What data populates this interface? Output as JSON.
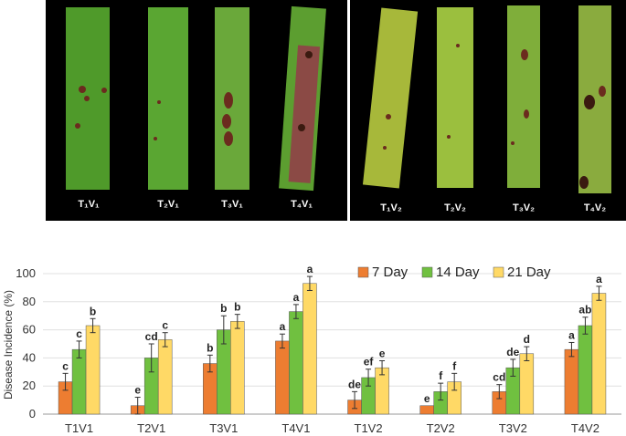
{
  "photo_panels": [
    {
      "labels": [
        "T₁V₁",
        "T₂V₁",
        "T₃V₁",
        "T₄V₁"
      ]
    },
    {
      "labels": [
        "T₁V₂",
        "T₂V₂",
        "T₃V₂",
        "T₄V₂"
      ]
    }
  ],
  "colors": {
    "day7": "#ED7D31",
    "day14": "#70C040",
    "day21": "#FFD966",
    "leaf_green": "#5a9e2e",
    "lesion": "#6b2b1e"
  },
  "chart_data": {
    "type": "bar",
    "ylabel": "Disease Incidence (%)",
    "ylim": [
      0,
      100
    ],
    "yticks": [
      0,
      20,
      40,
      60,
      80,
      100
    ],
    "categories": [
      "T1V1",
      "T2V1",
      "T3V1",
      "T4V1",
      "T1V2",
      "T2V2",
      "T3V2",
      "T4V2"
    ],
    "series": [
      {
        "name": "7 Day",
        "values": [
          23,
          6,
          36,
          52,
          10,
          6,
          16,
          46
        ],
        "errors": [
          6,
          6,
          6,
          5,
          6,
          0,
          5,
          5
        ],
        "letters": [
          "c",
          "e",
          "b",
          "a",
          "de",
          "e",
          "cd",
          "a"
        ]
      },
      {
        "name": "14 Day",
        "values": [
          46,
          40,
          60,
          73,
          26,
          16,
          33,
          63
        ],
        "errors": [
          6,
          10,
          10,
          5,
          6,
          6,
          6,
          6
        ],
        "letters": [
          "c",
          "cd",
          "b",
          "a",
          "ef",
          "f",
          "de",
          "ab"
        ]
      },
      {
        "name": "21 Day",
        "values": [
          63,
          53,
          66,
          93,
          33,
          23,
          43,
          86
        ],
        "errors": [
          5,
          5,
          5,
          5,
          5,
          6,
          5,
          5
        ],
        "letters": [
          "b",
          "c",
          "b",
          "a",
          "e",
          "f",
          "d",
          "a"
        ]
      }
    ],
    "legend_position": "top-right"
  }
}
